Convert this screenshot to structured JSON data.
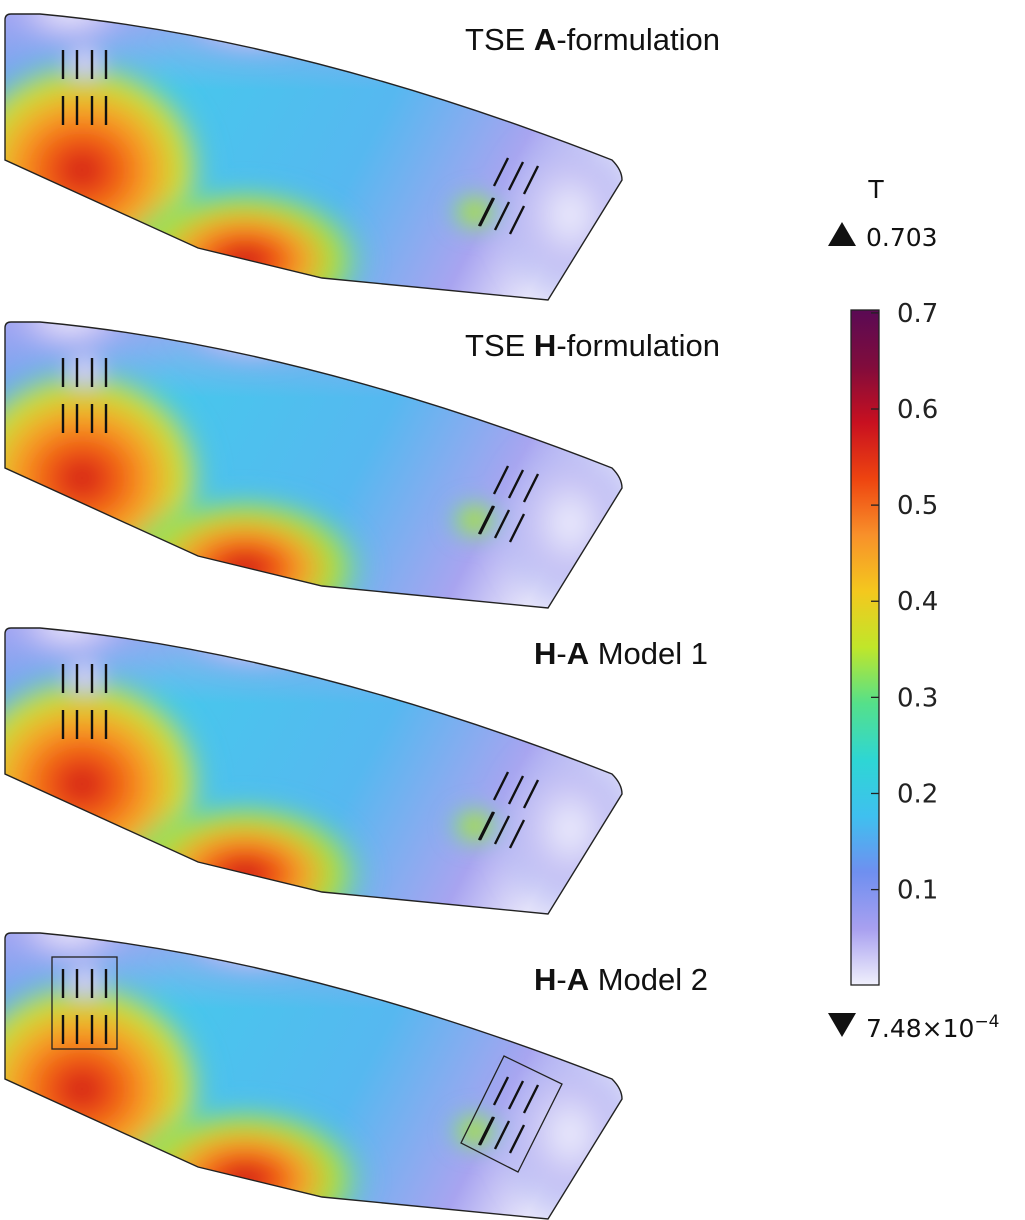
{
  "panels": [
    {
      "id": "p1",
      "title_bold_1": "",
      "title_sep": "",
      "title_bold_2": "",
      "title_plain_pre": "TSE ",
      "title_bold": "A",
      "title_plain_post": "-formulation",
      "boxes": false
    },
    {
      "id": "p2",
      "title_plain_pre": "TSE ",
      "title_bold": "H",
      "title_plain_post": "-formulation",
      "boxes": false
    },
    {
      "id": "p3",
      "title_plain_pre": "",
      "title_bold": "H",
      "title_plain_post": "-",
      "title_bold_b": "A",
      "title_plain_end": " Model 1",
      "boxes": false
    },
    {
      "id": "p4",
      "title_plain_pre": "",
      "title_bold": "H",
      "title_plain_post": "-",
      "title_bold_b": "A",
      "title_plain_end": " Model 2",
      "boxes": true
    }
  ],
  "colorbar": {
    "unit": "T",
    "max_label": "0.703",
    "min_label": "7.48×10",
    "min_exp": "−4",
    "max_value": 0.703,
    "min_value": 0.000748,
    "ticks": [
      {
        "value": 0.1,
        "label": "0.1"
      },
      {
        "value": 0.2,
        "label": "0.2"
      },
      {
        "value": 0.3,
        "label": "0.3"
      },
      {
        "value": 0.4,
        "label": "0.4"
      },
      {
        "value": 0.5,
        "label": "0.5"
      },
      {
        "value": 0.6,
        "label": "0.6"
      },
      {
        "value": 0.7,
        "label": "0.7"
      }
    ],
    "colors": [
      "#f0f0fc",
      "#a8a0f0",
      "#6f8ff0",
      "#3fc0ef",
      "#2ed6d4",
      "#55e08a",
      "#c0e62a",
      "#f4c81e",
      "#f8902a",
      "#ee4410",
      "#c81020",
      "#800c3c",
      "#5a0a54"
    ]
  }
}
